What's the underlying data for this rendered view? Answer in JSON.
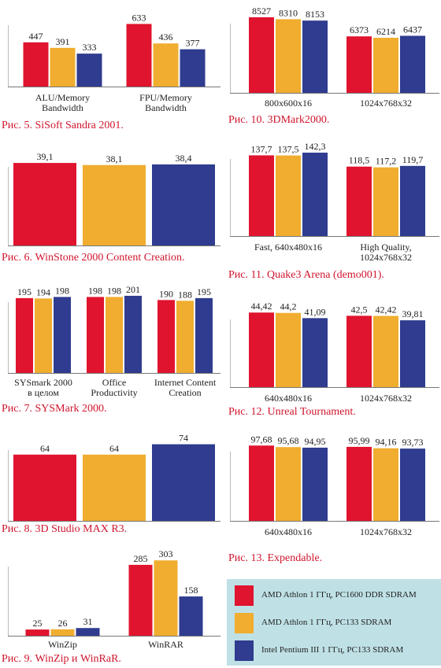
{
  "colors": {
    "series": [
      "#e0142e",
      "#f0ad30",
      "#2f3c8f"
    ],
    "axis": "#777777",
    "value_text": "#222222"
  },
  "legend": {
    "items": [
      {
        "label": "AMD Athlon 1 ГГц, PC1600 DDR SDRAM",
        "color": "#e0142e"
      },
      {
        "label": "AMD Athlon 1 ГГц, PC133 SDRAM",
        "color": "#f0ad30"
      },
      {
        "label": "Intel Pentium III 1 ГГц, PC133 SDRAM",
        "color": "#2f3c8f"
      }
    ]
  },
  "chart_data": [
    {
      "id": "c5",
      "type": "bar",
      "title": "Рис. 5. SiSoft Sandra 2001.",
      "categories": [
        [
          "ALU/Memory",
          "Bandwidth"
        ],
        [
          "FPU/Memory",
          "Bandwidth"
        ]
      ],
      "series": [
        {
          "values": [
            447,
            633
          ]
        },
        {
          "values": [
            391,
            436
          ]
        },
        {
          "values": [
            333,
            377
          ]
        }
      ],
      "value_labels": [
        [
          "447",
          "633"
        ],
        [
          "391",
          "436"
        ],
        [
          "333",
          "377"
        ]
      ],
      "ylim": [
        0,
        700
      ]
    },
    {
      "id": "c6",
      "type": "bar",
      "title": "Рис. 6. WinStone 2000 Content Creation.",
      "categories": [
        [
          ""
        ]
      ],
      "series": [
        {
          "values": [
            39.1
          ]
        },
        {
          "values": [
            38.1
          ]
        },
        {
          "values": [
            38.4
          ]
        }
      ],
      "value_labels": [
        [
          "39,1"
        ],
        [
          "38,1"
        ],
        [
          "38,4"
        ]
      ],
      "ylim": [
        0,
        41
      ]
    },
    {
      "id": "c7",
      "type": "bar",
      "title": "Рис. 7. SYSMark 2000.",
      "categories": [
        [
          "SYSmark 2000",
          "в целом"
        ],
        [
          "Office",
          "Productivity"
        ],
        [
          "Internet Content",
          "Creation"
        ]
      ],
      "series": [
        {
          "values": [
            195,
            198,
            190
          ]
        },
        {
          "values": [
            194,
            198,
            188
          ]
        },
        {
          "values": [
            198,
            201,
            195
          ]
        }
      ],
      "value_labels": [
        [
          "195",
          "198",
          "190"
        ],
        [
          "194",
          "198",
          "188"
        ],
        [
          "198",
          "201",
          "195"
        ]
      ],
      "ylim": [
        0,
        205
      ]
    },
    {
      "id": "c8",
      "type": "bar",
      "title": "Рис. 8. 3D Studio MAX R3.",
      "categories": [
        [
          ""
        ]
      ],
      "series": [
        {
          "values": [
            64
          ]
        },
        {
          "values": [
            64
          ]
        },
        {
          "values": [
            74
          ]
        }
      ],
      "value_labels": [
        [
          "64"
        ],
        [
          "64"
        ],
        [
          "74"
        ]
      ],
      "ylim": [
        0,
        76
      ]
    },
    {
      "id": "c9",
      "type": "bar",
      "title": "Рис. 9. WinZip и WinRaR.",
      "categories": [
        [
          "WinZip"
        ],
        [
          "WinRAR"
        ]
      ],
      "series": [
        {
          "values": [
            25,
            285
          ]
        },
        {
          "values": [
            26,
            303
          ]
        },
        {
          "values": [
            31,
            158
          ]
        }
      ],
      "value_labels": [
        [
          "25",
          "285"
        ],
        [
          "26",
          "303"
        ],
        [
          "31",
          "158"
        ]
      ],
      "ylim": [
        0,
        310
      ]
    },
    {
      "id": "c10",
      "type": "bar",
      "title": "Рис. 10. 3DMark2000.",
      "categories": [
        [
          "800x600x16"
        ],
        [
          "1024x768x32"
        ]
      ],
      "series": [
        {
          "values": [
            8527,
            6373
          ]
        },
        {
          "values": [
            8310,
            6214
          ]
        },
        {
          "values": [
            8153,
            6437
          ]
        }
      ],
      "value_labels": [
        [
          "8527",
          "6373"
        ],
        [
          "8310",
          "6214"
        ],
        [
          "8153",
          "6437"
        ]
      ],
      "ylim": [
        0,
        8700
      ]
    },
    {
      "id": "c11",
      "type": "bar",
      "title": "Рис. 11. Quake3 Arena (demo001).",
      "categories": [
        [
          "Fast, 640x480x16"
        ],
        [
          "High Quality,",
          "1024x768x32"
        ]
      ],
      "series": [
        {
          "values": [
            137.7,
            118.5
          ]
        },
        {
          "values": [
            137.5,
            117.2
          ]
        },
        {
          "values": [
            142.3,
            119.7
          ]
        }
      ],
      "value_labels": [
        [
          "137,7",
          "118,5"
        ],
        [
          "137,5",
          "117,2"
        ],
        [
          "142,3",
          "119,7"
        ]
      ],
      "ylim": [
        0,
        145
      ]
    },
    {
      "id": "c12",
      "type": "bar",
      "title": "Рис. 12. Unreal Tournament.",
      "categories": [
        [
          "640x480x16"
        ],
        [
          "1024x768x32"
        ]
      ],
      "series": [
        {
          "values": [
            44.42,
            42.5
          ]
        },
        {
          "values": [
            44.2,
            42.42
          ]
        },
        {
          "values": [
            41.09,
            39.81
          ]
        }
      ],
      "value_labels": [
        [
          "44,42",
          "42,5"
        ],
        [
          "44,2",
          "42,42"
        ],
        [
          "41,09",
          "39,81"
        ]
      ],
      "ylim": [
        0,
        45
      ]
    },
    {
      "id": "c13",
      "type": "bar",
      "title": "Рис. 13. Expendable.",
      "categories": [
        [
          "640x480x16"
        ],
        [
          "1024x768x32"
        ]
      ],
      "series": [
        {
          "values": [
            97.68,
            95.99
          ]
        },
        {
          "values": [
            95.68,
            94.16
          ]
        },
        {
          "values": [
            94.95,
            93.73
          ]
        }
      ],
      "value_labels": [
        [
          "97,68",
          "95,99"
        ],
        [
          "95,68",
          "94,16"
        ],
        [
          "94,95",
          "93,73"
        ]
      ],
      "ylim": [
        0,
        100
      ]
    }
  ]
}
